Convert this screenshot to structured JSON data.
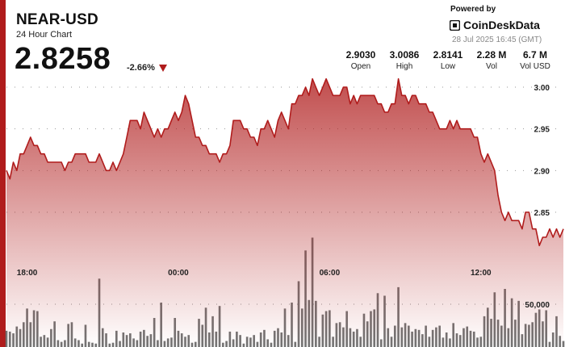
{
  "header": {
    "title": "NEAR-USD",
    "subtitle": "24 Hour Chart",
    "price": "2.8258",
    "change": "-2.66%",
    "change_direction": "down",
    "down_color": "#b01c1c"
  },
  "branding": {
    "powered_by": "Powered by",
    "name": "CoinDeskData",
    "timestamp": "28 Jul 2025 16:45 (GMT)"
  },
  "stats": [
    {
      "value": "2.9030",
      "label": "Open"
    },
    {
      "value": "3.0086",
      "label": "High"
    },
    {
      "value": "2.8141",
      "label": "Low"
    },
    {
      "value": "2.28 M",
      "label": "Vol"
    },
    {
      "value": "6.7 M",
      "label": "Vol USD"
    }
  ],
  "chart_data": {
    "type": "area",
    "price_axis": {
      "min": 2.75,
      "max": 3.02,
      "ticks": [
        "3.00",
        "2.95",
        "2.90",
        "2.85"
      ],
      "tick_values": [
        3.0,
        2.95,
        2.9,
        2.85
      ]
    },
    "volume_axis": {
      "max": 170000,
      "ticks": [
        "50,000"
      ],
      "tick_values": [
        50000
      ]
    },
    "x_ticks": [
      {
        "label": "18:00",
        "index": 6
      },
      {
        "label": "00:00",
        "index": 50
      },
      {
        "label": "06:00",
        "index": 94
      },
      {
        "label": "12:00",
        "index": 138
      }
    ],
    "grid": "dotted-horizontal",
    "line_color": "#b01c1c",
    "fill_color": "#b01c1c",
    "volume_color": "#555555",
    "price": [
      2.9,
      2.89,
      2.91,
      2.9,
      2.92,
      2.92,
      2.93,
      2.94,
      2.93,
      2.93,
      2.92,
      2.92,
      2.91,
      2.91,
      2.91,
      2.91,
      2.91,
      2.9,
      2.91,
      2.91,
      2.92,
      2.92,
      2.92,
      2.92,
      2.91,
      2.91,
      2.91,
      2.92,
      2.91,
      2.9,
      2.9,
      2.91,
      2.9,
      2.91,
      2.92,
      2.94,
      2.96,
      2.96,
      2.96,
      2.95,
      2.97,
      2.96,
      2.95,
      2.94,
      2.95,
      2.94,
      2.95,
      2.95,
      2.96,
      2.97,
      2.96,
      2.97,
      2.99,
      2.98,
      2.96,
      2.94,
      2.94,
      2.93,
      2.93,
      2.92,
      2.92,
      2.92,
      2.91,
      2.92,
      2.92,
      2.93,
      2.96,
      2.96,
      2.96,
      2.95,
      2.95,
      2.94,
      2.94,
      2.93,
      2.95,
      2.95,
      2.96,
      2.95,
      2.94,
      2.96,
      2.97,
      2.96,
      2.95,
      2.98,
      2.98,
      2.99,
      2.99,
      3.0,
      2.99,
      3.01,
      3.0,
      2.99,
      3.0,
      3.01,
      3.0,
      2.99,
      2.99,
      2.99,
      3.0,
      3.0,
      2.98,
      2.99,
      2.98,
      2.99,
      2.99,
      2.99,
      2.99,
      2.99,
      2.98,
      2.98,
      2.97,
      2.97,
      2.98,
      2.98,
      3.01,
      2.99,
      2.99,
      2.98,
      2.99,
      2.99,
      2.98,
      2.98,
      2.98,
      2.97,
      2.97,
      2.96,
      2.95,
      2.95,
      2.95,
      2.96,
      2.95,
      2.96,
      2.95,
      2.95,
      2.95,
      2.95,
      2.94,
      2.94,
      2.92,
      2.91,
      2.92,
      2.91,
      2.9,
      2.87,
      2.85,
      2.84,
      2.85,
      2.84,
      2.84,
      2.84,
      2.83,
      2.85,
      2.85,
      2.83,
      2.83,
      2.81,
      2.82,
      2.82,
      2.83,
      2.82,
      2.83,
      2.82,
      2.83
    ],
    "volume": [
      19000,
      18000,
      16000,
      24000,
      21000,
      29000,
      45000,
      29000,
      43000,
      42000,
      12000,
      14000,
      11000,
      21000,
      30000,
      8000,
      6000,
      8000,
      27000,
      29000,
      10000,
      8000,
      4000,
      26000,
      6000,
      5000,
      4000,
      80000,
      22000,
      16000,
      4000,
      5000,
      19000,
      7000,
      17000,
      14000,
      16000,
      10000,
      8000,
      18000,
      20000,
      13000,
      15000,
      34000,
      8000,
      52000,
      7000,
      10000,
      11000,
      34000,
      19000,
      16000,
      12000,
      14000,
      5000,
      6000,
      33000,
      26000,
      46000,
      17000,
      36000,
      18000,
      48000,
      5000,
      7000,
      18000,
      9000,
      18000,
      14000,
      4000,
      12000,
      11000,
      14000,
      6000,
      17000,
      20000,
      9000,
      5000,
      19000,
      22000,
      17000,
      45000,
      14000,
      52000,
      6000,
      77000,
      45000,
      113000,
      55000,
      128000,
      54000,
      12000,
      38000,
      42000,
      43000,
      12000,
      28000,
      29000,
      23000,
      42000,
      22000,
      18000,
      21000,
      12000,
      39000,
      30000,
      42000,
      44000,
      63000,
      9000,
      60000,
      22000,
      12000,
      25000,
      70000,
      23000,
      28000,
      25000,
      18000,
      21000,
      20000,
      15000,
      25000,
      12000,
      20000,
      23000,
      25000,
      11000,
      17000,
      10000,
      28000,
      16000,
      14000,
      22000,
      24000,
      19000,
      18000,
      11000,
      12000,
      36000,
      46000,
      33000,
      64000,
      32000,
      25000,
      68000,
      22000,
      57000,
      32000,
      54000,
      15000,
      27000,
      26000,
      29000,
      40000,
      44000,
      30000,
      43000,
      6000,
      17000,
      36000,
      13000,
      7000,
      35000,
      70000
    ]
  }
}
